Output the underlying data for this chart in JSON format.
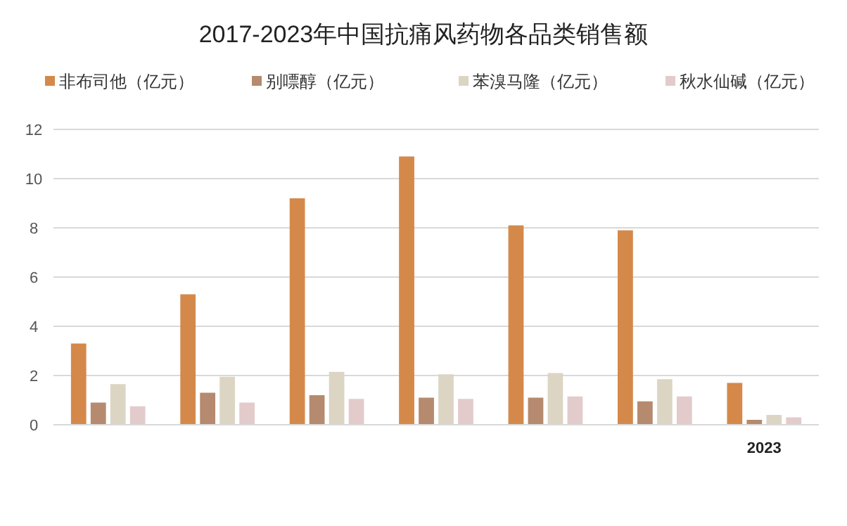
{
  "chart_data": {
    "type": "bar",
    "title": "2017-2023年中国抗痛风药物各品类销售额",
    "categories": [
      null,
      null,
      null,
      null,
      null,
      null,
      "2023"
    ],
    "series": [
      {
        "name": "非布司他（亿元）",
        "color": "#d4894a",
        "values": [
          3.3,
          5.3,
          9.2,
          10.9,
          8.1,
          7.9,
          1.7
        ]
      },
      {
        "name": "别嘌醇（亿元）",
        "color": "#b58a6e",
        "values": [
          0.9,
          1.3,
          1.2,
          1.1,
          1.1,
          0.95,
          0.2
        ]
      },
      {
        "name": "苯溴马隆（亿元）",
        "color": "#ddd5c4",
        "values": [
          1.65,
          1.95,
          2.15,
          2.05,
          2.1,
          1.85,
          0.4
        ]
      },
      {
        "name": "秋水仙碱（亿元）",
        "color": "#e3cbcb",
        "values": [
          0.75,
          0.9,
          1.05,
          1.05,
          1.15,
          1.15,
          0.3
        ]
      }
    ],
    "ylim": [
      0,
      12
    ],
    "yticks": [
      0,
      2,
      4,
      6,
      8,
      10,
      12
    ],
    "grid": "y",
    "legend": "top left"
  }
}
